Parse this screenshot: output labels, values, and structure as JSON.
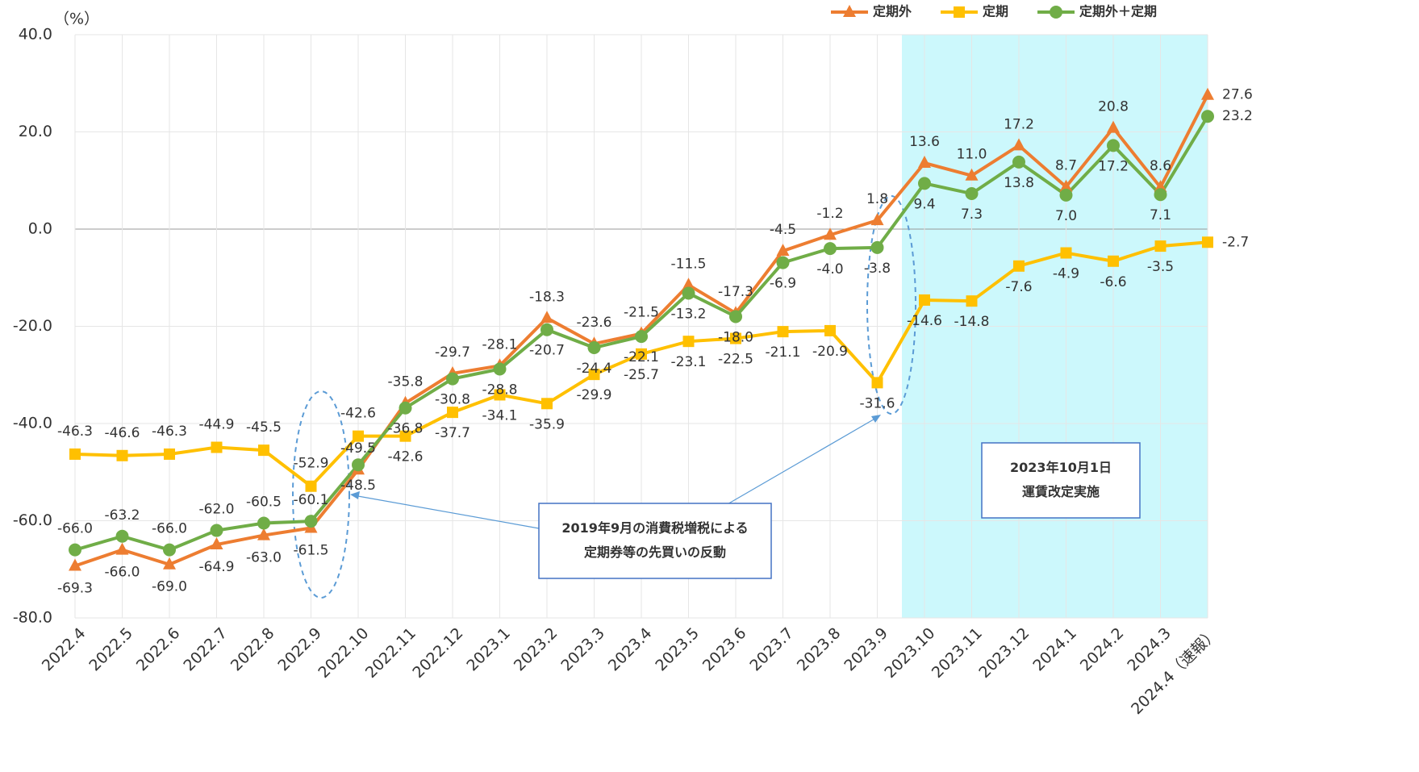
{
  "chart_data": {
    "type": "line",
    "unit_label": "（%）",
    "categories": [
      "2022.4",
      "2022.5",
      "2022.6",
      "2022.7",
      "2022.8",
      "2022.9",
      "2022.10",
      "2022.11",
      "2022.12",
      "2023.1",
      "2023.2",
      "2023.3",
      "2023.4",
      "2023.5",
      "2023.6",
      "2023.7",
      "2023.8",
      "2023.9",
      "2023.10",
      "2023.11",
      "2023.12",
      "2024.1",
      "2024.2",
      "2024.3",
      "2024.4（速報）"
    ],
    "series": [
      {
        "name": "定期外",
        "color": "#ed7d31",
        "marker": "triangle",
        "values": [
          -69.3,
          -66.0,
          -69.0,
          -64.9,
          -63.0,
          -61.5,
          -49.5,
          -35.8,
          -29.7,
          -28.1,
          -18.3,
          -23.6,
          -21.5,
          -11.5,
          -17.3,
          -4.5,
          -1.2,
          1.8,
          13.6,
          11.0,
          17.2,
          8.7,
          20.8,
          8.6,
          27.6
        ],
        "value_labels": [
          "-69.3",
          "-66.0",
          "-69.0",
          "-64.9",
          "-63.0",
          "-61.5",
          "-49.5",
          "-35.8",
          "-29.7",
          "-28.1",
          "-18.3",
          "-23.6",
          "-21.5",
          "-11.5",
          "-17.3",
          "-4.5",
          "-1.2",
          "1.8",
          "13.6",
          "11.0",
          "17.2",
          "8.7",
          "20.8",
          "8.6",
          "27.6"
        ]
      },
      {
        "name": "定期",
        "color": "#ffc000",
        "marker": "square",
        "values": [
          -46.3,
          -46.6,
          -46.3,
          -44.9,
          -45.5,
          -52.9,
          -42.6,
          -42.6,
          -37.7,
          -34.1,
          -35.9,
          -29.9,
          -25.7,
          -23.1,
          -22.5,
          -21.1,
          -20.9,
          -31.6,
          -14.6,
          -14.8,
          -7.6,
          -4.9,
          -6.6,
          -3.5,
          -2.7
        ],
        "value_labels": [
          "-46.3",
          "-46.6",
          "-46.3",
          "-44.9",
          "-45.5",
          "-52.9",
          "-42.6",
          "-42.6",
          "-37.7",
          "-34.1",
          "-35.9",
          "-29.9",
          "-25.7",
          "-23.1",
          "-22.5",
          "-21.1",
          "-20.9",
          "-31.6",
          "-14.6",
          "-14.8",
          "-7.6",
          "-4.9",
          "-6.6",
          "-3.5",
          "-2.7"
        ]
      },
      {
        "name": "定期外＋定期",
        "color": "#70ad47",
        "marker": "circle",
        "values": [
          -66.0,
          -63.2,
          -66.0,
          -62.0,
          -60.5,
          -60.1,
          -48.5,
          -36.8,
          -30.8,
          -28.8,
          -20.7,
          -24.4,
          -22.1,
          -13.2,
          -18.0,
          -6.9,
          -4.0,
          -3.8,
          9.4,
          7.3,
          13.8,
          7.0,
          17.2,
          7.1,
          23.2
        ],
        "value_labels": [
          "-66.0",
          "-63.2",
          "-66.0",
          "-62.0",
          "-60.5",
          "-60.1",
          "-48.5",
          "-36.8",
          "-30.8",
          "-28.8",
          "-20.7",
          "-24.4",
          "-22.1",
          "-13.2",
          "-18.0",
          "-6.9",
          "-4.0",
          "-3.8",
          "9.4",
          "7.3",
          "13.8",
          "7.0",
          "17.2",
          "7.1",
          "23.2"
        ]
      }
    ],
    "ylim": [
      -80,
      40
    ],
    "yticks": [
      {
        "value": -80,
        "label": "-80.0"
      },
      {
        "value": -60,
        "label": "-60.0"
      },
      {
        "value": -40,
        "label": "-40.0"
      },
      {
        "value": -20,
        "label": "-20.0"
      },
      {
        "value": 0,
        "label": "0.0"
      },
      {
        "value": 20,
        "label": "20.0"
      },
      {
        "value": 40,
        "label": "40.0"
      }
    ],
    "legend": "top-right",
    "annotations": [
      {
        "lines": [
          "2019年9月の消費税増税による",
          "定期券等の先買いの反動"
        ]
      },
      {
        "lines": [
          "2023年10月1日",
          "運賃改定実施"
        ]
      }
    ]
  }
}
